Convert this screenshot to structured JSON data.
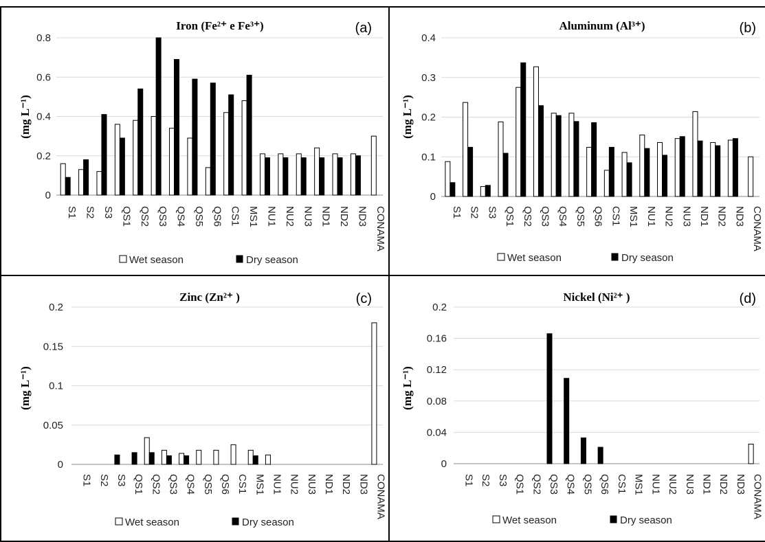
{
  "chart_data": [
    {
      "type": "bar",
      "panel_label": "(a)",
      "title": "Iron (Fe²⁺ e Fe³⁺)",
      "ylabel": "(mg L⁻¹)",
      "ylim": [
        0,
        0.8
      ],
      "yticks": [
        "0",
        "0.2",
        "0.4",
        "0.6",
        "0.8"
      ],
      "categories": [
        "S1",
        "S2",
        "S3",
        "QS1",
        "QS2",
        "QS3",
        "QS4",
        "QS5",
        "QS6",
        "CS1",
        "MS1",
        "NU1",
        "NU2",
        "NU3",
        "ND1",
        "ND2",
        "ND3",
        "CONAMA"
      ],
      "series": [
        {
          "name": "Wet season",
          "values": [
            0.16,
            0.13,
            0.12,
            0.36,
            0.38,
            0.4,
            0.34,
            0.29,
            0.14,
            0.42,
            0.48,
            0.21,
            0.21,
            0.21,
            0.24,
            0.21,
            0.21,
            0.3
          ]
        },
        {
          "name": "Dry season",
          "values": [
            0.09,
            0.18,
            0.41,
            0.29,
            0.54,
            0.8,
            0.69,
            0.59,
            0.57,
            0.51,
            0.61,
            0.19,
            0.19,
            0.19,
            0.19,
            0.19,
            0.2,
            null
          ]
        }
      ],
      "grid": true,
      "legend": "bottom"
    },
    {
      "type": "bar",
      "panel_label": "(b)",
      "title": "Aluminum (Al³⁺)",
      "ylabel": "(mg L⁻¹)",
      "ylim": [
        0,
        0.4
      ],
      "yticks": [
        "0",
        "0.1",
        "0.2",
        "0.3",
        "0.4"
      ],
      "categories": [
        "S1",
        "S2",
        "S3",
        "QS1",
        "QS2",
        "QS3",
        "QS4",
        "QS5",
        "QS6",
        "CS1",
        "MS1",
        "NU1",
        "NU2",
        "NU3",
        "ND1",
        "ND2",
        "ND3",
        "CONAMA"
      ],
      "series": [
        {
          "name": "Wet season",
          "values": [
            0.088,
            0.237,
            0.025,
            0.188,
            0.275,
            0.327,
            0.21,
            0.21,
            0.124,
            0.066,
            0.111,
            0.155,
            0.136,
            0.146,
            0.214,
            0.136,
            0.142,
            0.1
          ]
        },
        {
          "name": "Dry season",
          "values": [
            0.035,
            0.124,
            0.028,
            0.109,
            0.337,
            0.229,
            0.204,
            0.189,
            0.186,
            0.124,
            0.085,
            0.121,
            0.104,
            0.151,
            0.14,
            0.128,
            0.146,
            null
          ]
        }
      ],
      "grid": true,
      "legend": "bottom"
    },
    {
      "type": "bar",
      "panel_label": "(c)",
      "title": "Zinc (Zn²⁺ )",
      "ylabel": "(mg L⁻¹)",
      "ylim": [
        0,
        0.2
      ],
      "yticks": [
        "0",
        "0.05",
        "0.1",
        "0.15",
        "0.2"
      ],
      "categories": [
        "S1",
        "S2",
        "S3",
        "QS1",
        "QS2",
        "QS3",
        "QS4",
        "QS5",
        "QS6",
        "CS1",
        "MS1",
        "NU1",
        "NU2",
        "NU3",
        "ND1",
        "ND2",
        "ND3",
        "CONAMA"
      ],
      "series": [
        {
          "name": "Wet season",
          "values": [
            0,
            0,
            0,
            0,
            0.034,
            0.018,
            0.014,
            0.018,
            0.018,
            0.025,
            0.018,
            0.012,
            0,
            0,
            0,
            0,
            0,
            0.18
          ]
        },
        {
          "name": "Dry season",
          "values": [
            0,
            0,
            0.012,
            0.015,
            0.015,
            0.011,
            0.011,
            0,
            0,
            0,
            0.011,
            0,
            0,
            0,
            0,
            0,
            0,
            null
          ]
        }
      ],
      "grid": true,
      "legend": "bottom"
    },
    {
      "type": "bar",
      "panel_label": "(d)",
      "title": "Nickel (Ni²⁺ )",
      "ylabel": "(mg L⁻¹)",
      "ylim": [
        0,
        0.2
      ],
      "yticks": [
        "0",
        "0.04",
        "0.08",
        "0.12",
        "0.16",
        "0.2"
      ],
      "categories": [
        "S1",
        "S2",
        "S3",
        "QS1",
        "QS2",
        "QS3",
        "QS4",
        "QS5",
        "QS6",
        "CS1",
        "MS1",
        "NU1",
        "NU2",
        "NU3",
        "ND1",
        "ND2",
        "ND3",
        "CONAMA"
      ],
      "series": [
        {
          "name": "Wet season",
          "values": [
            0,
            0,
            0,
            0,
            0,
            0,
            0,
            0,
            0,
            0,
            0,
            0,
            0,
            0,
            0,
            0,
            0,
            0.025
          ]
        },
        {
          "name": "Dry season",
          "values": [
            0,
            0,
            0,
            0,
            0,
            0.166,
            0.109,
            0.033,
            0.021,
            0,
            0,
            0,
            0,
            0,
            0,
            0,
            0,
            null
          ]
        }
      ],
      "grid": true,
      "legend": "bottom"
    }
  ],
  "colors": {
    "wet_fill": "#ffffff",
    "dry_fill": "#000000",
    "bar_stroke": "#000000",
    "grid": "#d9d9d9",
    "axis": "#888888",
    "border": "#000000"
  }
}
